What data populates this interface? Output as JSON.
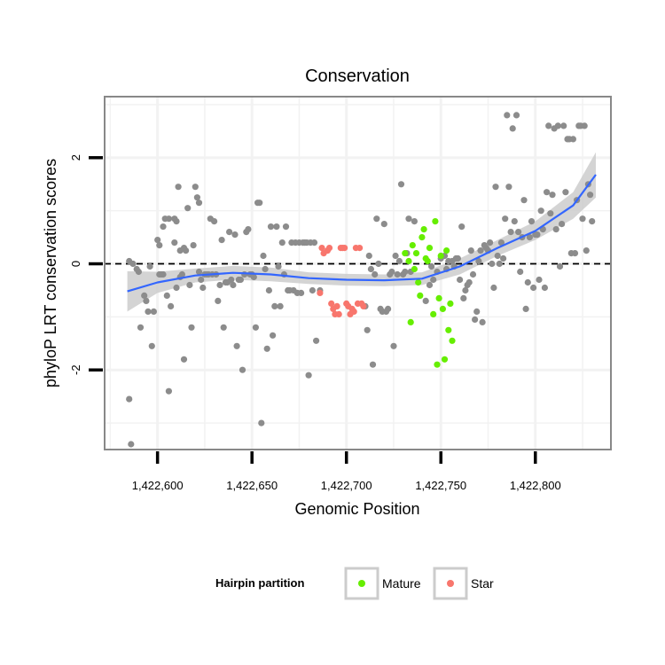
{
  "chart_data": {
    "type": "scatter",
    "title": "Conservation",
    "xlabel": "Genomic Position",
    "ylabel": "phyloP LRT conservation scores",
    "xlim": [
      1422572,
      1422840
    ],
    "ylim": [
      -3.5,
      3.15
    ],
    "x_ticks": [
      1422600,
      1422650,
      1422700,
      1422750,
      1422800
    ],
    "x_tick_labels": [
      "1,422,600",
      "1,422,650",
      "1,422,700",
      "1,422,750",
      "1,422,800"
    ],
    "y_ticks": [
      -2,
      0,
      2
    ],
    "y_tick_labels": [
      "-2",
      "0",
      "2"
    ],
    "reference_line_y": 0,
    "grid": true,
    "colors": {
      "other": "#8c8c8c",
      "mature": "#66ee00",
      "star": "#f8766d",
      "smooth": "#3366ff",
      "ribbon": "#cccccc"
    },
    "legend": {
      "title": "Hairpin partition",
      "position": "bottom",
      "entries": [
        {
          "label": "Mature",
          "color": "#66ee00"
        },
        {
          "label": "Star",
          "color": "#f8766d"
        }
      ]
    },
    "smooth": {
      "x": [
        1422584,
        1422600,
        1422620,
        1422640,
        1422660,
        1422680,
        1422700,
        1422720,
        1422740,
        1422760,
        1422780,
        1422800,
        1422820,
        1422832
      ],
      "y": [
        -0.52,
        -0.35,
        -0.22,
        -0.17,
        -0.2,
        -0.27,
        -0.3,
        -0.31,
        -0.28,
        -0.05,
        0.3,
        0.62,
        1.1,
        1.68
      ],
      "lower": [
        -0.9,
        -0.55,
        -0.35,
        -0.3,
        -0.33,
        -0.38,
        -0.41,
        -0.42,
        -0.4,
        -0.2,
        0.15,
        0.45,
        0.85,
        1.25
      ],
      "upper": [
        -0.14,
        -0.15,
        -0.09,
        -0.04,
        -0.07,
        -0.16,
        -0.19,
        -0.2,
        -0.16,
        0.1,
        0.45,
        0.8,
        1.35,
        2.1
      ]
    },
    "series": [
      {
        "name": "Other",
        "points": [
          [
            1422585,
            -2.55
          ],
          [
            1422585,
            0.05
          ],
          [
            1422586,
            -3.4
          ],
          [
            1422587,
            0.0
          ],
          [
            1422589,
            -0.1
          ],
          [
            1422590,
            -0.15
          ],
          [
            1422591,
            -1.2
          ],
          [
            1422593,
            -0.6
          ],
          [
            1422594,
            -0.7
          ],
          [
            1422595,
            -0.9
          ],
          [
            1422596,
            -0.05
          ],
          [
            1422597,
            -1.55
          ],
          [
            1422598,
            -0.9
          ],
          [
            1422600,
            0.45
          ],
          [
            1422601,
            0.35
          ],
          [
            1422601,
            -0.2
          ],
          [
            1422602,
            -0.2
          ],
          [
            1422603,
            0.7
          ],
          [
            1422603,
            -0.2
          ],
          [
            1422604,
            0.85
          ],
          [
            1422605,
            -0.6
          ],
          [
            1422606,
            -2.4
          ],
          [
            1422606,
            0.85
          ],
          [
            1422607,
            -0.8
          ],
          [
            1422609,
            0.85
          ],
          [
            1422609,
            0.4
          ],
          [
            1422610,
            0.8
          ],
          [
            1422610,
            -0.45
          ],
          [
            1422611,
            1.45
          ],
          [
            1422612,
            0.25
          ],
          [
            1422612,
            -0.25
          ],
          [
            1422613,
            -0.2
          ],
          [
            1422614,
            -1.8
          ],
          [
            1422614,
            0.3
          ],
          [
            1422615,
            0.25
          ],
          [
            1422616,
            1.05
          ],
          [
            1422617,
            -0.4
          ],
          [
            1422618,
            -1.2
          ],
          [
            1422619,
            0.35
          ],
          [
            1422620,
            1.45
          ],
          [
            1422621,
            1.25
          ],
          [
            1422622,
            1.15
          ],
          [
            1422622,
            -0.15
          ],
          [
            1422623,
            -0.3
          ],
          [
            1422624,
            -0.45
          ],
          [
            1422625,
            -0.2
          ],
          [
            1422626,
            -0.2
          ],
          [
            1422627,
            -0.2
          ],
          [
            1422628,
            0.85
          ],
          [
            1422629,
            -0.2
          ],
          [
            1422630,
            0.8
          ],
          [
            1422631,
            -0.2
          ],
          [
            1422632,
            -0.7
          ],
          [
            1422633,
            -0.4
          ],
          [
            1422634,
            0.45
          ],
          [
            1422635,
            -1.2
          ],
          [
            1422636,
            -0.35
          ],
          [
            1422637,
            -0.35
          ],
          [
            1422638,
            0.6
          ],
          [
            1422639,
            -0.3
          ],
          [
            1422640,
            -0.4
          ],
          [
            1422641,
            0.55
          ],
          [
            1422642,
            -1.55
          ],
          [
            1422643,
            -0.3
          ],
          [
            1422644,
            -0.3
          ],
          [
            1422645,
            -2.0
          ],
          [
            1422646,
            -0.2
          ],
          [
            1422647,
            0.6
          ],
          [
            1422648,
            0.65
          ],
          [
            1422649,
            -0.2
          ],
          [
            1422650,
            -0.2
          ],
          [
            1422651,
            -0.25
          ],
          [
            1422652,
            -1.2
          ],
          [
            1422653,
            1.15
          ],
          [
            1422654,
            1.15
          ],
          [
            1422655,
            -3.0
          ],
          [
            1422656,
            0.15
          ],
          [
            1422657,
            -0.1
          ],
          [
            1422658,
            -1.6
          ],
          [
            1422659,
            -0.5
          ],
          [
            1422660,
            0.7
          ],
          [
            1422661,
            -1.35
          ],
          [
            1422662,
            -0.8
          ],
          [
            1422663,
            0.7
          ],
          [
            1422664,
            -0.05
          ],
          [
            1422665,
            -0.8
          ],
          [
            1422666,
            0.4
          ],
          [
            1422667,
            -0.2
          ],
          [
            1422668,
            0.7
          ],
          [
            1422669,
            -0.5
          ],
          [
            1422670,
            -0.5
          ],
          [
            1422671,
            0.4
          ],
          [
            1422672,
            -0.5
          ],
          [
            1422673,
            0.4
          ],
          [
            1422674,
            -0.55
          ],
          [
            1422675,
            0.4
          ],
          [
            1422676,
            -0.55
          ],
          [
            1422677,
            0.4
          ],
          [
            1422678,
            0.4
          ],
          [
            1422679,
            0.4
          ],
          [
            1422680,
            -2.1
          ],
          [
            1422681,
            0.4
          ],
          [
            1422682,
            -0.5
          ],
          [
            1422683,
            0.4
          ],
          [
            1422684,
            -1.45
          ],
          [
            1422686,
            -0.5
          ],
          [
            1422710,
            -0.8
          ],
          [
            1422711,
            -1.25
          ],
          [
            1422712,
            0.15
          ],
          [
            1422713,
            -0.1
          ],
          [
            1422714,
            -1.9
          ],
          [
            1422715,
            -0.2
          ],
          [
            1422716,
            0.85
          ],
          [
            1422717,
            0.0
          ],
          [
            1422718,
            -0.85
          ],
          [
            1422719,
            -0.9
          ],
          [
            1422720,
            0.75
          ],
          [
            1422721,
            -0.9
          ],
          [
            1422722,
            -0.85
          ],
          [
            1422723,
            -0.2
          ],
          [
            1422724,
            -0.15
          ],
          [
            1422725,
            -1.55
          ],
          [
            1422726,
            0.15
          ],
          [
            1422727,
            -0.2
          ],
          [
            1422728,
            0.05
          ],
          [
            1422729,
            1.5
          ],
          [
            1422730,
            -0.2
          ],
          [
            1422731,
            -0.15
          ],
          [
            1422732,
            0.2
          ],
          [
            1422733,
            0.85
          ],
          [
            1422734,
            -0.15
          ],
          [
            1422736,
            0.8
          ],
          [
            1422742,
            -0.7
          ],
          [
            1422744,
            -0.4
          ],
          [
            1422745,
            -0.05
          ],
          [
            1422746,
            -0.3
          ],
          [
            1422748,
            -0.15
          ],
          [
            1422750,
            0.1
          ],
          [
            1422752,
            0.15
          ],
          [
            1422753,
            -0.1
          ],
          [
            1422754,
            0.05
          ],
          [
            1422756,
            0.05
          ],
          [
            1422757,
            -0.05
          ],
          [
            1422758,
            0.1
          ],
          [
            1422759,
            0.1
          ],
          [
            1422760,
            -0.3
          ],
          [
            1422761,
            0.7
          ],
          [
            1422762,
            -0.65
          ],
          [
            1422763,
            -0.5
          ],
          [
            1422764,
            -0.4
          ],
          [
            1422765,
            -0.35
          ],
          [
            1422766,
            0.25
          ],
          [
            1422767,
            -0.2
          ],
          [
            1422768,
            -1.05
          ],
          [
            1422769,
            -0.9
          ],
          [
            1422770,
            0.05
          ],
          [
            1422771,
            0.25
          ],
          [
            1422772,
            -1.1
          ],
          [
            1422773,
            0.35
          ],
          [
            1422774,
            0.3
          ],
          [
            1422775,
            0.25
          ],
          [
            1422776,
            0.4
          ],
          [
            1422777,
            0.0
          ],
          [
            1422778,
            -0.45
          ],
          [
            1422779,
            1.45
          ],
          [
            1422780,
            0.15
          ],
          [
            1422781,
            0.0
          ],
          [
            1422782,
            0.4
          ],
          [
            1422783,
            0.1
          ],
          [
            1422784,
            0.85
          ],
          [
            1422785,
            2.8
          ],
          [
            1422786,
            1.45
          ],
          [
            1422787,
            0.6
          ],
          [
            1422788,
            2.55
          ],
          [
            1422789,
            0.8
          ],
          [
            1422790,
            2.8
          ],
          [
            1422791,
            0.6
          ],
          [
            1422792,
            -0.15
          ],
          [
            1422793,
            0.5
          ],
          [
            1422794,
            1.2
          ],
          [
            1422795,
            -0.85
          ],
          [
            1422796,
            -0.35
          ],
          [
            1422797,
            0.5
          ],
          [
            1422798,
            0.8
          ],
          [
            1422799,
            -0.45
          ],
          [
            1422800,
            0.55
          ],
          [
            1422801,
            0.55
          ],
          [
            1422802,
            -0.3
          ],
          [
            1422803,
            1.0
          ],
          [
            1422804,
            0.65
          ],
          [
            1422805,
            -0.45
          ],
          [
            1422806,
            1.35
          ],
          [
            1422807,
            2.6
          ],
          [
            1422808,
            0.95
          ],
          [
            1422809,
            1.3
          ],
          [
            1422810,
            2.55
          ],
          [
            1422811,
            0.65
          ],
          [
            1422812,
            2.6
          ],
          [
            1422813,
            -0.05
          ],
          [
            1422814,
            0.75
          ],
          [
            1422815,
            2.6
          ],
          [
            1422816,
            1.35
          ],
          [
            1422817,
            2.35
          ],
          [
            1422818,
            2.35
          ],
          [
            1422819,
            0.2
          ],
          [
            1422820,
            2.35
          ],
          [
            1422821,
            0.2
          ],
          [
            1422822,
            1.2
          ],
          [
            1422823,
            2.6
          ],
          [
            1422824,
            2.6
          ],
          [
            1422825,
            0.85
          ],
          [
            1422826,
            2.6
          ],
          [
            1422827,
            0.25
          ],
          [
            1422828,
            1.5
          ],
          [
            1422829,
            1.3
          ],
          [
            1422830,
            0.8
          ]
        ]
      },
      {
        "name": "Mature",
        "points": [
          [
            1422731,
            0.2
          ],
          [
            1422733,
            0.05
          ],
          [
            1422734,
            -1.1
          ],
          [
            1422735,
            0.35
          ],
          [
            1422736,
            -0.1
          ],
          [
            1422737,
            0.2
          ],
          [
            1422738,
            -0.35
          ],
          [
            1422739,
            -0.6
          ],
          [
            1422740,
            0.5
          ],
          [
            1422741,
            0.65
          ],
          [
            1422742,
            0.1
          ],
          [
            1422743,
            0.05
          ],
          [
            1422744,
            0.3
          ],
          [
            1422746,
            -0.95
          ],
          [
            1422747,
            0.8
          ],
          [
            1422748,
            -1.9
          ],
          [
            1422749,
            -0.65
          ],
          [
            1422750,
            0.15
          ],
          [
            1422751,
            -0.85
          ],
          [
            1422752,
            -1.8
          ],
          [
            1422753,
            0.25
          ],
          [
            1422754,
            -1.25
          ],
          [
            1422755,
            -0.75
          ],
          [
            1422756,
            -1.45
          ]
        ]
      },
      {
        "name": "Star",
        "points": [
          [
            1422686,
            -0.55
          ],
          [
            1422687,
            0.3
          ],
          [
            1422688,
            0.2
          ],
          [
            1422690,
            0.25
          ],
          [
            1422691,
            0.3
          ],
          [
            1422692,
            -0.75
          ],
          [
            1422693,
            -0.85
          ],
          [
            1422694,
            -0.95
          ],
          [
            1422695,
            -0.8
          ],
          [
            1422696,
            -0.95
          ],
          [
            1422697,
            0.3
          ],
          [
            1422698,
            0.3
          ],
          [
            1422699,
            0.3
          ],
          [
            1422700,
            -0.75
          ],
          [
            1422701,
            -0.8
          ],
          [
            1422702,
            -0.95
          ],
          [
            1422703,
            -0.85
          ],
          [
            1422704,
            -0.9
          ],
          [
            1422705,
            0.3
          ],
          [
            1422706,
            -0.75
          ],
          [
            1422707,
            0.3
          ],
          [
            1422708,
            -0.75
          ],
          [
            1422709,
            -0.8
          ]
        ]
      }
    ]
  }
}
